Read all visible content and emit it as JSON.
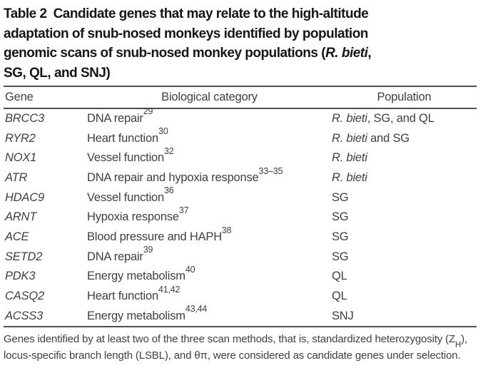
{
  "title": {
    "label": "Table 2",
    "line1": "Candidate genes that may relate to the high-altitude",
    "line2": "adaptation of snub-nosed monkeys identified by population",
    "line3_pre": "genomic scans of snub-nosed monkey populations (",
    "line3_italic": "R. bieti",
    "line3_post": ",",
    "line4": "SG, QL, and SNJ)"
  },
  "table": {
    "headers": {
      "gene": "Gene",
      "category": "Biological category",
      "population": "Population"
    },
    "rows": [
      {
        "gene": "BRCC3",
        "category": "DNA repair",
        "refs": "29",
        "pop_italic": "R. bieti",
        "pop_rest": ", SG, and QL"
      },
      {
        "gene": "RYR2",
        "category": "Heart function",
        "refs": "30",
        "pop_italic": "R. bieti",
        "pop_rest": " and SG"
      },
      {
        "gene": "NOX1",
        "category": "Vessel function",
        "refs": "32",
        "pop_italic": "R. bieti",
        "pop_rest": ""
      },
      {
        "gene": "ATR",
        "category": "DNA repair and hypoxia response",
        "refs": "33–35",
        "pop_italic": "R. bieti",
        "pop_rest": ""
      },
      {
        "gene": "HDAC9",
        "category": "Vessel function",
        "refs": "36",
        "pop_italic": "",
        "pop_rest": "SG"
      },
      {
        "gene": "ARNT",
        "category": "Hypoxia response",
        "refs": "37",
        "pop_italic": "",
        "pop_rest": "SG"
      },
      {
        "gene": "ACE",
        "category": "Blood pressure and HAPH",
        "refs": "38",
        "pop_italic": "",
        "pop_rest": "SG"
      },
      {
        "gene": "SETD2",
        "category": "DNA repair",
        "refs": "39",
        "pop_italic": "",
        "pop_rest": "SG"
      },
      {
        "gene": "PDK3",
        "category": "Energy metabolism",
        "refs": "40",
        "pop_italic": "",
        "pop_rest": "QL"
      },
      {
        "gene": "CASQ2",
        "category": "Heart function",
        "refs": "41,42",
        "pop_italic": "",
        "pop_rest": "QL"
      },
      {
        "gene": "ACSS3",
        "category": "Energy metabolism",
        "refs": "43,44",
        "pop_italic": "",
        "pop_rest": "SNJ"
      }
    ]
  },
  "footnote": {
    "part1": "Genes identified by at least two of the three scan methods, that is, standardized heterozygosity (Z",
    "sub": "H",
    "part2": "), locus-specific branch length (LSBL), and θπ, were considered as candidate genes under selection."
  }
}
